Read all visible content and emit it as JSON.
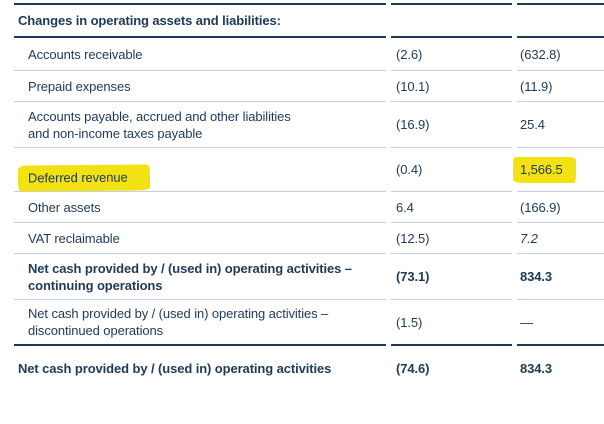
{
  "colors": {
    "text": "#1D3A56",
    "rule_dark": "#1D3A56",
    "rule_light": "#C6D0DC",
    "highlight": "#F2E213",
    "background": "#FFFFFF"
  },
  "statement": {
    "header": "Changes in operating assets and liabilities:",
    "rows": [
      {
        "label": "Accounts receivable",
        "col1": "(2.6)",
        "col2": "(632.8)"
      },
      {
        "label": "Prepaid expenses",
        "col1": "(10.1)",
        "col2": "(11.9)"
      },
      {
        "label": "Accounts payable, accrued and other liabilities\nand non-income taxes payable",
        "col1": "(16.9)",
        "col2": "25.4"
      },
      {
        "label": "Deferred revenue",
        "col1": "(0.4)",
        "col2": "1,566.5",
        "highlighted": true
      },
      {
        "label": "Other assets",
        "col1": "6.4",
        "col2": "(166.9)"
      },
      {
        "label": "VAT reclaimable",
        "col1": "(12.5)",
        "col2": "7.2",
        "col2_italic": true
      },
      {
        "label": "Net cash provided by / (used in) operating activities –\ncontinuing operations",
        "col1": "(73.1)",
        "col2": "834.3",
        "bold": true
      },
      {
        "label": "Net cash provided by / (used in) operating activities –\ndiscontinued operations",
        "col1": "(1.5)",
        "col2": "—"
      },
      {
        "label": "Net cash provided by / (used in) operating activities",
        "col1": "(74.6)",
        "col2": "834.3",
        "bold": true,
        "total": true
      }
    ]
  },
  "annotations": {
    "highlighted_row_label": "Deferred revenue",
    "highlighted_value": "1,566.5",
    "highlight_color": "#F2E213"
  }
}
